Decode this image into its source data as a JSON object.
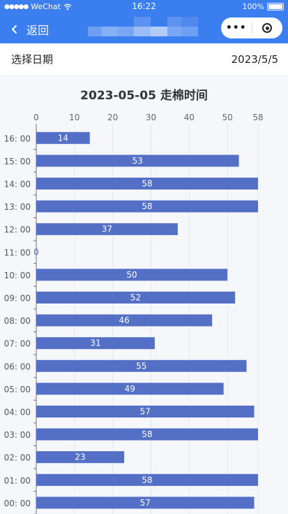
{
  "status_bar": {
    "carrier": "WeChat",
    "time": "16:22",
    "battery": "100%"
  },
  "nav": {
    "back_label": "返回"
  },
  "date_row": {
    "label": "选择日期",
    "value": "2023/5/5"
  },
  "colors": {
    "accent": "#3a7ef0",
    "bar": "#5470c6"
  },
  "chart_data": {
    "type": "bar",
    "orientation": "horizontal",
    "title": "2023-05-05 走棉时间",
    "xlabel": "",
    "ylabel": "",
    "x_ticks": [
      0,
      10,
      20,
      30,
      40,
      50,
      58
    ],
    "xlim": [
      0,
      58
    ],
    "categories": [
      "16: 00",
      "15: 00",
      "14: 00",
      "13: 00",
      "12: 00",
      "11: 00",
      "10: 00",
      "09: 00",
      "08: 00",
      "07: 00",
      "06: 00",
      "05: 00",
      "04: 00",
      "03: 00",
      "02: 00",
      "01: 00",
      "00: 00"
    ],
    "values": [
      14,
      53,
      58,
      58,
      37,
      0,
      50,
      52,
      46,
      31,
      55,
      49,
      57,
      58,
      23,
      58,
      57
    ],
    "grid": true,
    "axis_position": "top"
  }
}
